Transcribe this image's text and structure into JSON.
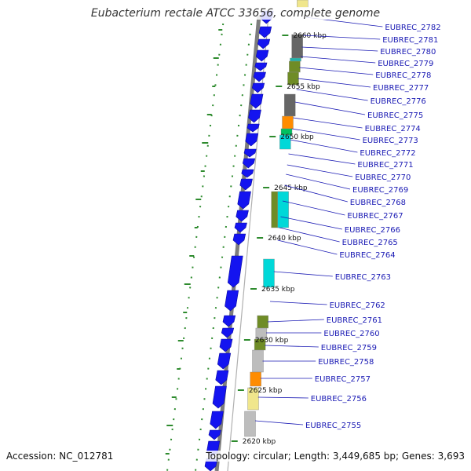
{
  "title": "Eubacterium rectale ATCC 33656, complete genome",
  "footer": {
    "accession": "Accession: NC_012781",
    "topology": "Topology: circular; Length: 3,449,685 bp; Genes: 3,693"
  },
  "colors": {
    "forward_gene": "#1414f0",
    "backbone": "#7d7d7d",
    "label": "#1a1ab4",
    "dot": "#2e8b2e",
    "categories": {
      "olive": "#6f8c26",
      "gray": "#666666",
      "light_gray": "#bdbdbd",
      "cyan": "#00d8d8",
      "teal": "#20b2aa",
      "orange": "#ff8c00",
      "green": "#00c060",
      "khaki": "#f0e68c"
    }
  },
  "scale_labels": [
    "2660 kbp",
    "2655 kbp",
    "2650 kbp",
    "2645 kbp",
    "2640 kbp",
    "2635 kbp",
    "2630 kbp",
    "2625 kbp",
    "2620 kbp"
  ],
  "gene_labels": [
    "EUBREC_2782",
    "EUBREC_2781",
    "EUBREC_2780",
    "EUBREC_2779",
    "EUBREC_2778",
    "EUBREC_2777",
    "EUBREC_2776",
    "EUBREC_2775",
    "EUBREC_2774",
    "EUBREC_2773",
    "EUBREC_2772",
    "EUBREC_2771",
    "EUBREC_2770",
    "EUBREC_2769",
    "EUBREC_2768",
    "EUBREC_2767",
    "EUBREC_2766",
    "EUBREC_2765",
    "EUBREC_2764",
    "EUBREC_2763",
    "EUBREC_2762",
    "EUBREC_2761",
    "EUBREC_2760",
    "EUBREC_2759",
    "EUBREC_2758",
    "EUBREC_2757",
    "EUBREC_2756",
    "EUBREC_2755"
  ],
  "cog_blocks": [
    {
      "color": "khaki"
    },
    {
      "color": "gray"
    },
    {
      "color": "teal"
    },
    {
      "color": "olive"
    },
    {
      "color": "olive"
    },
    {
      "color": "gray"
    },
    {
      "color": "orange"
    },
    {
      "color": "green"
    },
    {
      "color": "cyan"
    },
    {
      "color": "olive"
    },
    {
      "color": "cyan"
    },
    {
      "color": "cyan"
    },
    {
      "color": "olive"
    },
    {
      "color": "light_gray"
    },
    {
      "color": "olive"
    },
    {
      "color": "light_gray"
    },
    {
      "color": "orange"
    },
    {
      "color": "khaki"
    },
    {
      "color": "light_gray"
    }
  ]
}
